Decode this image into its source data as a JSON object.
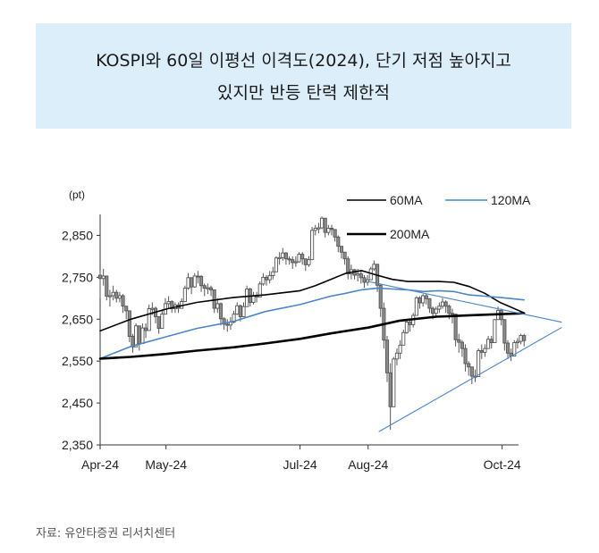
{
  "title": {
    "line1": "KOSPI와 60일 이평선 이격도(2024), 단기 저점 높아지고",
    "line2": "있지만 반등 탄력 제한적"
  },
  "source": "자료: 유안타증권 리서치센터",
  "chart_data": {
    "type": "line",
    "title": "KOSPI와 60일 이평선 이격도(2024), 단기 저점 높아지고 있지만 반등 탄력 제한적",
    "unit_label": "(pt)",
    "ylim": [
      2350,
      2900
    ],
    "yticks": [
      "2,850",
      "2,750",
      "2,650",
      "2,550",
      "2,450",
      "2,350"
    ],
    "ytick_values": [
      2850,
      2750,
      2650,
      2550,
      2450,
      2350
    ],
    "xticks": [
      "Apr-24",
      "May-24",
      "Jul-24",
      "Aug-24",
      "Oct-24"
    ],
    "xtick_dates": [
      "2024-04-01",
      "2024-05-01",
      "2024-07-01",
      "2024-08-01",
      "2024-10-01"
    ],
    "xlim": [
      "2024-04-01",
      "2024-10-28"
    ],
    "grid": false,
    "legend_position": "top-right",
    "legend": [
      {
        "name": "60MA",
        "color": "#000000"
      },
      {
        "name": "120MA",
        "color": "#4a86c8"
      },
      {
        "name": "200MA",
        "color": "#000000"
      }
    ],
    "candles": {
      "date_range": [
        "2024-04-01",
        "2024-10-11"
      ],
      "close": [
        2747,
        2753,
        2705,
        2706,
        2714,
        2700,
        2706,
        2681,
        2670,
        2609,
        2584,
        2634,
        2592,
        2629,
        2623,
        2675,
        2676,
        2656,
        2628,
        2662,
        2687,
        2692,
        2675,
        2684,
        2676,
        2692,
        2724,
        2749,
        2727,
        2753,
        2752,
        2730,
        2724,
        2725,
        2720,
        2676,
        2687,
        2651,
        2638,
        2636,
        2643,
        2662,
        2682,
        2656,
        2680,
        2722,
        2690,
        2706,
        2703,
        2734,
        2750,
        2744,
        2754,
        2763,
        2796,
        2797,
        2808,
        2794,
        2792,
        2785,
        2787,
        2805,
        2794,
        2780,
        2792,
        2862,
        2867,
        2868,
        2891,
        2857,
        2867,
        2864,
        2846,
        2824,
        2810,
        2794,
        2758,
        2768,
        2755,
        2758,
        2749,
        2738,
        2744,
        2770,
        2781,
        2731,
        2676,
        2600,
        2522,
        2441,
        2555,
        2569,
        2588,
        2618,
        2643,
        2637,
        2659,
        2701,
        2689,
        2706,
        2699,
        2676,
        2664,
        2674,
        2681,
        2691,
        2681,
        2664,
        2662,
        2601,
        2595,
        2580,
        2544,
        2536,
        2514,
        2513,
        2575,
        2571,
        2580,
        2602,
        2594,
        2649,
        2671,
        2649,
        2593,
        2569,
        2562,
        2594,
        2597,
        2611,
        2599
      ],
      "low": [
        2700,
        2730,
        2695,
        2680,
        2695,
        2690,
        2690,
        2665,
        2650,
        2595,
        2570,
        2595,
        2575,
        2595,
        2605,
        2640,
        2660,
        2640,
        2615,
        2640,
        2665,
        2675,
        2665,
        2665,
        2665,
        2675,
        2695,
        2720,
        2710,
        2725,
        2735,
        2715,
        2705,
        2710,
        2705,
        2665,
        2665,
        2635,
        2625,
        2620,
        2625,
        2640,
        2660,
        2645,
        2655,
        2695,
        2680,
        2685,
        2690,
        2710,
        2730,
        2730,
        2735,
        2745,
        2770,
        2780,
        2790,
        2780,
        2780,
        2770,
        2775,
        2785,
        2780,
        2765,
        2775,
        2830,
        2850,
        2855,
        2865,
        2845,
        2850,
        2850,
        2835,
        2810,
        2795,
        2780,
        2745,
        2745,
        2745,
        2740,
        2735,
        2725,
        2730,
        2745,
        2765,
        2715,
        2655,
        2580,
        2500,
        2386,
        2470,
        2540,
        2555,
        2590,
        2615,
        2620,
        2630,
        2675,
        2675,
        2680,
        2685,
        2665,
        2650,
        2655,
        2665,
        2675,
        2665,
        2650,
        2640,
        2585,
        2570,
        2560,
        2525,
        2515,
        2495,
        2500,
        2540,
        2555,
        2560,
        2580,
        2580,
        2620,
        2650,
        2635,
        2575,
        2555,
        2550,
        2565,
        2580,
        2590,
        2585
      ],
      "high": [
        2765,
        2770,
        2750,
        2720,
        2730,
        2720,
        2715,
        2710,
        2680,
        2670,
        2615,
        2640,
        2625,
        2640,
        2640,
        2685,
        2690,
        2680,
        2655,
        2670,
        2700,
        2705,
        2695,
        2690,
        2690,
        2700,
        2730,
        2760,
        2750,
        2760,
        2765,
        2755,
        2735,
        2735,
        2730,
        2720,
        2700,
        2690,
        2655,
        2650,
        2655,
        2670,
        2690,
        2685,
        2690,
        2730,
        2725,
        2715,
        2715,
        2740,
        2760,
        2755,
        2765,
        2775,
        2800,
        2810,
        2820,
        2810,
        2800,
        2800,
        2800,
        2810,
        2810,
        2795,
        2800,
        2870,
        2875,
        2880,
        2895,
        2880,
        2875,
        2875,
        2865,
        2850,
        2820,
        2810,
        2800,
        2780,
        2770,
        2770,
        2765,
        2755,
        2755,
        2775,
        2790,
        2780,
        2735,
        2690,
        2610,
        2545,
        2560,
        2580,
        2600,
        2625,
        2650,
        2650,
        2665,
        2705,
        2705,
        2710,
        2710,
        2700,
        2680,
        2680,
        2690,
        2700,
        2695,
        2685,
        2675,
        2660,
        2615,
        2600,
        2590,
        2550,
        2535,
        2530,
        2580,
        2590,
        2590,
        2610,
        2610,
        2650,
        2680,
        2675,
        2650,
        2600,
        2580,
        2600,
        2605,
        2615,
        2615
      ]
    },
    "series": [
      {
        "name": "60MA",
        "dates": [
          "2024-04-01",
          "2024-04-15",
          "2024-05-01",
          "2024-05-15",
          "2024-06-01",
          "2024-06-15",
          "2024-07-01",
          "2024-07-08",
          "2024-07-15",
          "2024-07-22",
          "2024-07-29",
          "2024-08-05",
          "2024-08-12",
          "2024-08-19",
          "2024-08-26",
          "2024-09-02",
          "2024-09-09",
          "2024-09-16",
          "2024-09-23",
          "2024-09-30",
          "2024-10-11"
        ],
        "values": [
          2622,
          2650,
          2674,
          2690,
          2702,
          2708,
          2718,
          2730,
          2745,
          2760,
          2766,
          2755,
          2745,
          2740,
          2740,
          2740,
          2738,
          2728,
          2712,
          2690,
          2665
        ]
      },
      {
        "name": "120MA",
        "dates": [
          "2024-04-01",
          "2024-04-15",
          "2024-05-01",
          "2024-05-15",
          "2024-06-01",
          "2024-06-15",
          "2024-07-01",
          "2024-07-15",
          "2024-07-22",
          "2024-07-29",
          "2024-08-05",
          "2024-08-12",
          "2024-08-19",
          "2024-08-26",
          "2024-09-02",
          "2024-09-09",
          "2024-09-16",
          "2024-09-23",
          "2024-09-30",
          "2024-10-11"
        ],
        "values": [
          2556,
          2585,
          2608,
          2628,
          2645,
          2668,
          2685,
          2705,
          2712,
          2720,
          2724,
          2722,
          2720,
          2716,
          2718,
          2716,
          2708,
          2705,
          2702,
          2696
        ]
      },
      {
        "name": "200MA",
        "dates": [
          "2024-04-01",
          "2024-04-15",
          "2024-05-01",
          "2024-05-15",
          "2024-06-01",
          "2024-06-15",
          "2024-07-01",
          "2024-07-15",
          "2024-08-01",
          "2024-08-15",
          "2024-09-01",
          "2024-09-15",
          "2024-10-01",
          "2024-10-11"
        ],
        "values": [
          2556,
          2560,
          2567,
          2575,
          2583,
          2592,
          2603,
          2616,
          2630,
          2646,
          2656,
          2659,
          2662,
          2664
        ]
      },
      {
        "dates": [
          "2024-08-06",
          "2024-10-28"
        ],
        "values": [
          2382,
          2630
        ]
      },
      {
        "dates": [
          "2024-08-01",
          "2024-10-28"
        ],
        "values": [
          2740,
          2643
        ]
      }
    ]
  }
}
